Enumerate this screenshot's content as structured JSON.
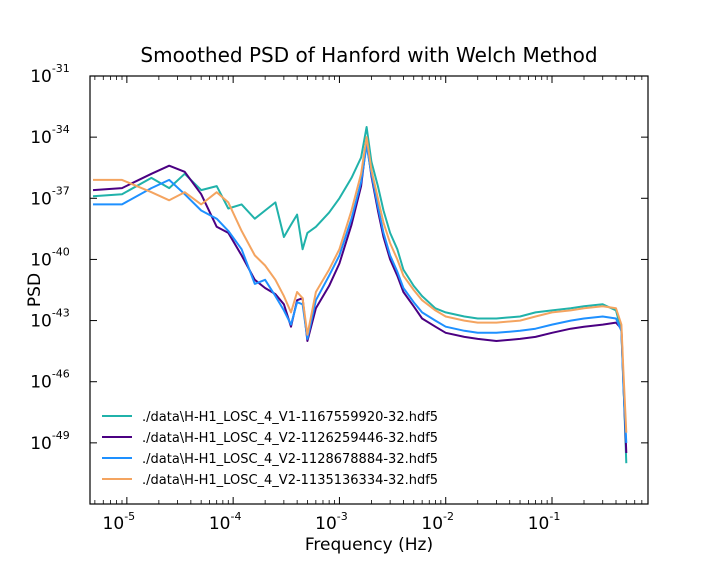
{
  "chart_data": {
    "type": "line",
    "title": "Smoothed PSD of Hanford with Welch Method",
    "xlabel": "Frequency (Hz)",
    "ylabel": "PSD",
    "xscale": "log",
    "yscale": "log",
    "xlim": [
      4.5e-06,
      0.8
    ],
    "ylim": [
      1e-52,
      1e-31
    ],
    "x_ticks": [
      {
        "base": "10",
        "exp": "-5",
        "value": 1e-05
      },
      {
        "base": "10",
        "exp": "-4",
        "value": 0.0001
      },
      {
        "base": "10",
        "exp": "-3",
        "value": 0.001
      },
      {
        "base": "10",
        "exp": "-2",
        "value": 0.01
      },
      {
        "base": "10",
        "exp": "-1",
        "value": 0.1
      }
    ],
    "y_ticks": [
      {
        "base": "10",
        "exp": "-31",
        "value": -31
      },
      {
        "base": "10",
        "exp": "-34",
        "value": -34
      },
      {
        "base": "10",
        "exp": "-37",
        "value": -37
      },
      {
        "base": "10",
        "exp": "-40",
        "value": -40
      },
      {
        "base": "10",
        "exp": "-43",
        "value": -43
      },
      {
        "base": "10",
        "exp": "-46",
        "value": -46
      },
      {
        "base": "10",
        "exp": "-49",
        "value": -49
      }
    ],
    "legend_position": "lower-left",
    "grid": false,
    "series": [
      {
        "name": "./data\\H-H1_LOSC_4_V1-1167559920-32.hdf5",
        "color": "#20b2aa",
        "x": [
          4.8e-06,
          9e-06,
          1.7e-05,
          2.5e-05,
          3.5e-05,
          5e-05,
          7e-05,
          9e-05,
          0.00012,
          0.00016,
          0.0002,
          0.00025,
          0.0003,
          0.00035,
          0.0004,
          0.00045,
          0.0005,
          0.0006,
          0.0008,
          0.001,
          0.0013,
          0.0016,
          0.0018,
          0.002,
          0.0023,
          0.0026,
          0.003,
          0.0035,
          0.004,
          0.005,
          0.006,
          0.008,
          0.01,
          0.015,
          0.02,
          0.03,
          0.05,
          0.07,
          0.1,
          0.15,
          0.2,
          0.3,
          0.4,
          0.45,
          0.47,
          0.5
        ],
        "y": [
          -36.9,
          -36.8,
          -36.0,
          -36.5,
          -35.8,
          -36.6,
          -36.4,
          -37.5,
          -37.3,
          -38.0,
          -37.6,
          -37.2,
          -38.9,
          -38.3,
          -37.8,
          -39.5,
          -38.7,
          -38.4,
          -37.7,
          -37.0,
          -36.0,
          -35.0,
          -33.5,
          -35.2,
          -36.4,
          -37.6,
          -38.7,
          -39.5,
          -40.5,
          -41.3,
          -41.8,
          -42.4,
          -42.6,
          -42.8,
          -42.9,
          -42.9,
          -42.8,
          -42.6,
          -42.5,
          -42.4,
          -42.3,
          -42.2,
          -42.5,
          -43.5,
          -46.0,
          -50.0
        ]
      },
      {
        "name": "./data\\H-H1_LOSC_4_V2-1126259446-32.hdf5",
        "color": "#4b0082",
        "x": [
          4.8e-06,
          9e-06,
          1.7e-05,
          2.5e-05,
          3.5e-05,
          5e-05,
          7e-05,
          9e-05,
          0.00012,
          0.00016,
          0.0002,
          0.00025,
          0.0003,
          0.00035,
          0.0004,
          0.00045,
          0.0005,
          0.0006,
          0.0008,
          0.001,
          0.0013,
          0.0016,
          0.0018,
          0.002,
          0.0023,
          0.0026,
          0.003,
          0.0035,
          0.004,
          0.005,
          0.006,
          0.008,
          0.01,
          0.015,
          0.02,
          0.03,
          0.05,
          0.07,
          0.1,
          0.15,
          0.2,
          0.3,
          0.4,
          0.45,
          0.47,
          0.5
        ],
        "y": [
          -36.6,
          -36.5,
          -35.8,
          -35.4,
          -35.7,
          -36.8,
          -38.4,
          -38.7,
          -39.8,
          -41.0,
          -41.4,
          -41.7,
          -42.2,
          -43.3,
          -42.0,
          -41.9,
          -44.0,
          -42.4,
          -41.3,
          -40.2,
          -38.3,
          -36.4,
          -34.2,
          -35.9,
          -37.6,
          -38.9,
          -40.0,
          -40.8,
          -41.6,
          -42.3,
          -42.9,
          -43.3,
          -43.6,
          -43.8,
          -43.9,
          -44.0,
          -43.9,
          -43.8,
          -43.6,
          -43.4,
          -43.3,
          -43.2,
          -43.1,
          -43.4,
          -46.0,
          -49.5
        ]
      },
      {
        "name": "./data\\H-H1_LOSC_4_V2-1128678884-32.hdf5",
        "color": "#1e90ff",
        "x": [
          4.8e-06,
          9e-06,
          1.7e-05,
          2.5e-05,
          3.5e-05,
          5e-05,
          7e-05,
          9e-05,
          0.00012,
          0.00016,
          0.0002,
          0.00025,
          0.0003,
          0.00035,
          0.0004,
          0.00045,
          0.0005,
          0.0006,
          0.0008,
          0.001,
          0.0013,
          0.0016,
          0.0018,
          0.002,
          0.0023,
          0.0026,
          0.003,
          0.0035,
          0.004,
          0.005,
          0.006,
          0.008,
          0.01,
          0.015,
          0.02,
          0.03,
          0.05,
          0.07,
          0.1,
          0.15,
          0.2,
          0.3,
          0.4,
          0.45,
          0.47,
          0.5
        ],
        "y": [
          -37.3,
          -37.3,
          -36.5,
          -36.1,
          -36.8,
          -37.6,
          -38.0,
          -38.6,
          -39.5,
          -41.2,
          -41.0,
          -41.8,
          -42.5,
          -43.2,
          -42.1,
          -42.2,
          -43.9,
          -42.0,
          -40.8,
          -39.8,
          -38.0,
          -36.2,
          -34.4,
          -35.8,
          -37.4,
          -38.7,
          -39.8,
          -40.6,
          -41.4,
          -42.1,
          -42.6,
          -43.0,
          -43.3,
          -43.5,
          -43.6,
          -43.6,
          -43.5,
          -43.4,
          -43.2,
          -43.0,
          -42.9,
          -42.8,
          -42.9,
          -43.5,
          -46.2,
          -49.0
        ]
      },
      {
        "name": "./data\\H-H1_LOSC_4_V2-1135136334-32.hdf5",
        "color": "#f4a460",
        "x": [
          4.8e-06,
          9e-06,
          1.7e-05,
          2.5e-05,
          3.5e-05,
          5e-05,
          7e-05,
          9e-05,
          0.00012,
          0.00016,
          0.0002,
          0.00025,
          0.0003,
          0.00035,
          0.0004,
          0.00045,
          0.0005,
          0.0006,
          0.0008,
          0.001,
          0.0013,
          0.0016,
          0.0018,
          0.002,
          0.0023,
          0.0026,
          0.003,
          0.0035,
          0.004,
          0.005,
          0.006,
          0.008,
          0.01,
          0.015,
          0.02,
          0.03,
          0.05,
          0.07,
          0.1,
          0.15,
          0.2,
          0.3,
          0.4,
          0.45,
          0.47,
          0.5
        ],
        "y": [
          -36.1,
          -36.1,
          -36.7,
          -37.1,
          -36.7,
          -37.3,
          -36.7,
          -37.2,
          -38.6,
          -39.8,
          -40.3,
          -41.0,
          -41.8,
          -42.6,
          -41.6,
          -41.9,
          -43.7,
          -41.6,
          -40.5,
          -39.5,
          -37.6,
          -35.8,
          -34.0,
          -35.6,
          -37.0,
          -38.2,
          -39.2,
          -40.0,
          -40.8,
          -41.5,
          -42.0,
          -42.5,
          -42.8,
          -43.0,
          -43.1,
          -43.1,
          -43.0,
          -42.8,
          -42.6,
          -42.5,
          -42.4,
          -42.3,
          -42.4,
          -43.2,
          -45.5,
          -48.5
        ]
      }
    ]
  }
}
